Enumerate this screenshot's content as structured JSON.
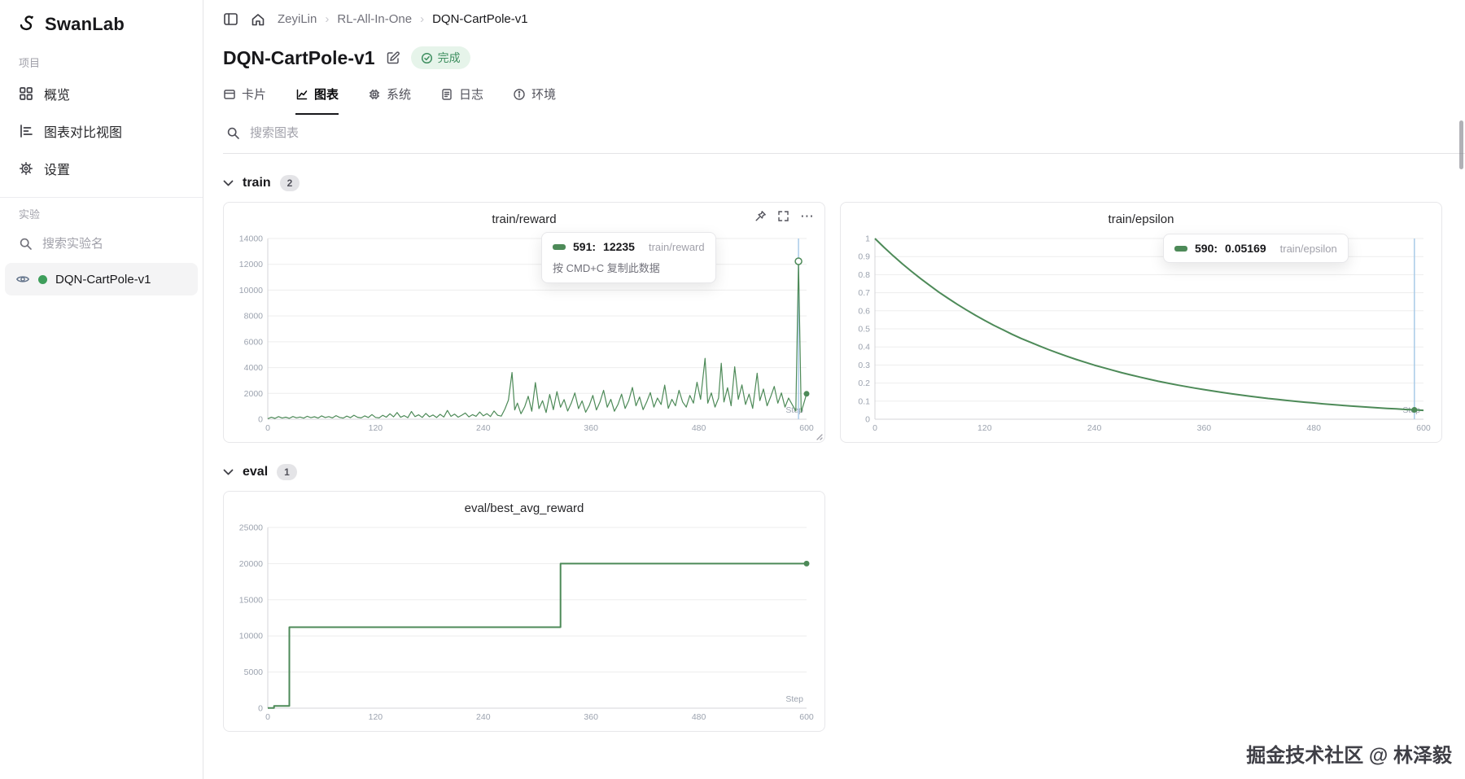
{
  "colors": {
    "line": "#4d8a58",
    "dot": "#3e9e5b",
    "crosshair": "#a9cbe8",
    "grid": "#ededed",
    "axis": "#d4d4d8",
    "tick_text": "#9ca3af"
  },
  "sidebar": {
    "logo": "SwanLab",
    "section_project": "项目",
    "items": [
      {
        "label": "概览"
      },
      {
        "label": "图表对比视图"
      },
      {
        "label": "设置"
      }
    ],
    "section_experiments": "实验",
    "search_placeholder": "搜索实验名",
    "experiment": {
      "name": "DQN-CartPole-v1"
    }
  },
  "breadcrumb": {
    "items": [
      "ZeyiLin",
      "RL-All-In-One",
      "DQN-CartPole-v1"
    ]
  },
  "header": {
    "title": "DQN-CartPole-v1",
    "status": "完成"
  },
  "tabs": [
    {
      "label": "卡片"
    },
    {
      "label": "图表"
    },
    {
      "label": "系统"
    },
    {
      "label": "日志"
    },
    {
      "label": "环境"
    }
  ],
  "chart_search_placeholder": "搜索图表",
  "sections": [
    {
      "name": "train",
      "count": "2"
    },
    {
      "name": "eval",
      "count": "1"
    }
  ],
  "tooltips": {
    "reward": {
      "step": "591:",
      "value": "12235",
      "series": "train/reward",
      "hint": "按 CMD+C 复制此数据"
    },
    "epsilon": {
      "step": "590:",
      "value": "0.05169",
      "series": "train/epsilon"
    }
  },
  "watermark": "掘金技术社区 @ 林泽毅",
  "chart_data": [
    {
      "type": "line",
      "title": "train/reward",
      "xlabel": "Step",
      "xlim": [
        0,
        600
      ],
      "xticks": [
        0,
        120,
        240,
        360,
        480,
        600
      ],
      "ylim": [
        0,
        14000
      ],
      "yticks": [
        0,
        2000,
        4000,
        6000,
        8000,
        10000,
        12000,
        14000
      ],
      "pad_left": 46,
      "stroke_width": 1.2,
      "crosshair_x": 591,
      "markers": [
        {
          "x": 591,
          "y": 12235,
          "style": "ring"
        },
        {
          "x": 600,
          "y": 1969,
          "style": "dot"
        }
      ],
      "points": [
        [
          0,
          40
        ],
        [
          4,
          150
        ],
        [
          8,
          60
        ],
        [
          12,
          200
        ],
        [
          16,
          90
        ],
        [
          20,
          160
        ],
        [
          24,
          70
        ],
        [
          28,
          210
        ],
        [
          32,
          110
        ],
        [
          36,
          170
        ],
        [
          40,
          80
        ],
        [
          44,
          230
        ],
        [
          48,
          120
        ],
        [
          52,
          190
        ],
        [
          56,
          90
        ],
        [
          60,
          260
        ],
        [
          64,
          130
        ],
        [
          68,
          200
        ],
        [
          72,
          100
        ],
        [
          76,
          280
        ],
        [
          80,
          140
        ],
        [
          84,
          90
        ],
        [
          88,
          240
        ],
        [
          92,
          120
        ],
        [
          96,
          310
        ],
        [
          100,
          150
        ],
        [
          104,
          100
        ],
        [
          108,
          260
        ],
        [
          112,
          130
        ],
        [
          116,
          360
        ],
        [
          120,
          140
        ],
        [
          124,
          100
        ],
        [
          128,
          300
        ],
        [
          132,
          160
        ],
        [
          136,
          420
        ],
        [
          140,
          180
        ],
        [
          144,
          520
        ],
        [
          148,
          150
        ],
        [
          152,
          280
        ],
        [
          156,
          120
        ],
        [
          160,
          600
        ],
        [
          164,
          200
        ],
        [
          168,
          340
        ],
        [
          172,
          140
        ],
        [
          176,
          450
        ],
        [
          180,
          190
        ],
        [
          184,
          330
        ],
        [
          188,
          130
        ],
        [
          192,
          380
        ],
        [
          196,
          170
        ],
        [
          200,
          680
        ],
        [
          204,
          220
        ],
        [
          208,
          400
        ],
        [
          212,
          160
        ],
        [
          216,
          310
        ],
        [
          220,
          480
        ],
        [
          224,
          180
        ],
        [
          228,
          350
        ],
        [
          232,
          230
        ],
        [
          236,
          560
        ],
        [
          240,
          260
        ],
        [
          244,
          430
        ],
        [
          248,
          210
        ],
        [
          252,
          640
        ],
        [
          256,
          300
        ],
        [
          260,
          240
        ],
        [
          264,
          780
        ],
        [
          268,
          1480
        ],
        [
          272,
          3620
        ],
        [
          275,
          720
        ],
        [
          278,
          1250
        ],
        [
          282,
          420
        ],
        [
          286,
          950
        ],
        [
          290,
          1780
        ],
        [
          294,
          620
        ],
        [
          298,
          2840
        ],
        [
          302,
          820
        ],
        [
          306,
          1430
        ],
        [
          310,
          520
        ],
        [
          314,
          1920
        ],
        [
          318,
          740
        ],
        [
          322,
          2140
        ],
        [
          326,
          930
        ],
        [
          330,
          1520
        ],
        [
          334,
          640
        ],
        [
          338,
          1240
        ],
        [
          342,
          2040
        ],
        [
          346,
          820
        ],
        [
          350,
          1420
        ],
        [
          354,
          540
        ],
        [
          358,
          1060
        ],
        [
          362,
          1840
        ],
        [
          366,
          720
        ],
        [
          370,
          1340
        ],
        [
          374,
          2240
        ],
        [
          378,
          930
        ],
        [
          382,
          1540
        ],
        [
          386,
          620
        ],
        [
          390,
          1140
        ],
        [
          394,
          1940
        ],
        [
          398,
          830
        ],
        [
          402,
          1440
        ],
        [
          406,
          2460
        ],
        [
          410,
          1040
        ],
        [
          414,
          1720
        ],
        [
          418,
          740
        ],
        [
          422,
          1340
        ],
        [
          426,
          2060
        ],
        [
          430,
          940
        ],
        [
          434,
          1640
        ],
        [
          438,
          1140
        ],
        [
          442,
          2640
        ],
        [
          446,
          840
        ],
        [
          450,
          1540
        ],
        [
          454,
          1040
        ],
        [
          458,
          2240
        ],
        [
          462,
          1340
        ],
        [
          466,
          940
        ],
        [
          470,
          1840
        ],
        [
          474,
          1240
        ],
        [
          478,
          2860
        ],
        [
          482,
          1540
        ],
        [
          487,
          4720
        ],
        [
          490,
          1240
        ],
        [
          494,
          2040
        ],
        [
          498,
          940
        ],
        [
          502,
          1640
        ],
        [
          505,
          4340
        ],
        [
          508,
          1340
        ],
        [
          512,
          2440
        ],
        [
          516,
          1040
        ],
        [
          520,
          4060
        ],
        [
          524,
          1540
        ],
        [
          528,
          2660
        ],
        [
          532,
          1140
        ],
        [
          536,
          1940
        ],
        [
          540,
          840
        ],
        [
          545,
          3560
        ],
        [
          548,
          1440
        ],
        [
          552,
          2340
        ],
        [
          556,
          1040
        ],
        [
          560,
          1740
        ],
        [
          564,
          2540
        ],
        [
          568,
          1240
        ],
        [
          572,
          2040
        ],
        [
          576,
          940
        ],
        [
          580,
          1640
        ],
        [
          584,
          1140
        ],
        [
          588,
          640
        ],
        [
          591,
          12235
        ],
        [
          594,
          560
        ],
        [
          597,
          1240
        ],
        [
          600,
          1969
        ]
      ]
    },
    {
      "type": "line",
      "title": "train/epsilon",
      "xlabel": "Step",
      "xlim": [
        0,
        600
      ],
      "xticks": [
        0,
        120,
        240,
        360,
        480,
        600
      ],
      "ylim": [
        0,
        1
      ],
      "yticks": [
        0,
        0.1,
        0.2,
        0.3,
        0.4,
        0.5,
        0.6,
        0.7,
        0.8,
        0.9,
        1
      ],
      "pad_left": 34,
      "stroke_width": 2,
      "crosshair_x": 590,
      "markers": [
        {
          "x": 590,
          "y": 0.0517,
          "style": "dot"
        }
      ],
      "points": [
        [
          0,
          1
        ],
        [
          10,
          0.951
        ],
        [
          20,
          0.904
        ],
        [
          30,
          0.86
        ],
        [
          40,
          0.818
        ],
        [
          50,
          0.778
        ],
        [
          60,
          0.74
        ],
        [
          70,
          0.703
        ],
        [
          80,
          0.669
        ],
        [
          90,
          0.636
        ],
        [
          100,
          0.605
        ],
        [
          110,
          0.575
        ],
        [
          120,
          0.547
        ],
        [
          130,
          0.52
        ],
        [
          140,
          0.495
        ],
        [
          150,
          0.47
        ],
        [
          160,
          0.447
        ],
        [
          170,
          0.426
        ],
        [
          180,
          0.405
        ],
        [
          190,
          0.385
        ],
        [
          200,
          0.366
        ],
        [
          210,
          0.348
        ],
        [
          220,
          0.331
        ],
        [
          230,
          0.315
        ],
        [
          240,
          0.299
        ],
        [
          250,
          0.285
        ],
        [
          260,
          0.271
        ],
        [
          270,
          0.257
        ],
        [
          280,
          0.245
        ],
        [
          290,
          0.233
        ],
        [
          300,
          0.221
        ],
        [
          310,
          0.21
        ],
        [
          320,
          0.2
        ],
        [
          330,
          0.19
        ],
        [
          340,
          0.181
        ],
        [
          350,
          0.172
        ],
        [
          360,
          0.164
        ],
        [
          370,
          0.156
        ],
        [
          380,
          0.148
        ],
        [
          390,
          0.141
        ],
        [
          400,
          0.134
        ],
        [
          410,
          0.127
        ],
        [
          420,
          0.121
        ],
        [
          430,
          0.115
        ],
        [
          440,
          0.11
        ],
        [
          450,
          0.104
        ],
        [
          460,
          0.099
        ],
        [
          470,
          0.094
        ],
        [
          480,
          0.09
        ],
        [
          490,
          0.085
        ],
        [
          500,
          0.081
        ],
        [
          510,
          0.077
        ],
        [
          520,
          0.073
        ],
        [
          530,
          0.07
        ],
        [
          540,
          0.066
        ],
        [
          550,
          0.063
        ],
        [
          560,
          0.06
        ],
        [
          570,
          0.057
        ],
        [
          580,
          0.054
        ],
        [
          590,
          0.0517
        ],
        [
          600,
          0.049
        ]
      ]
    },
    {
      "type": "line",
      "title": "eval/best_avg_reward",
      "xlabel": "Step",
      "xlim": [
        0,
        600
      ],
      "xticks": [
        0,
        120,
        240,
        360,
        480,
        600
      ],
      "ylim": [
        0,
        25000
      ],
      "yticks": [
        0,
        5000,
        10000,
        15000,
        20000,
        25000
      ],
      "pad_left": 46,
      "stroke_width": 2,
      "crosshair_x": null,
      "markers": [
        {
          "x": 600,
          "y": 20000,
          "style": "dot"
        }
      ],
      "points": [
        [
          0,
          20
        ],
        [
          7,
          20
        ],
        [
          7,
          320
        ],
        [
          24,
          320
        ],
        [
          24,
          11200
        ],
        [
          326,
          11200
        ],
        [
          326,
          20000
        ],
        [
          600,
          20000
        ]
      ]
    }
  ]
}
